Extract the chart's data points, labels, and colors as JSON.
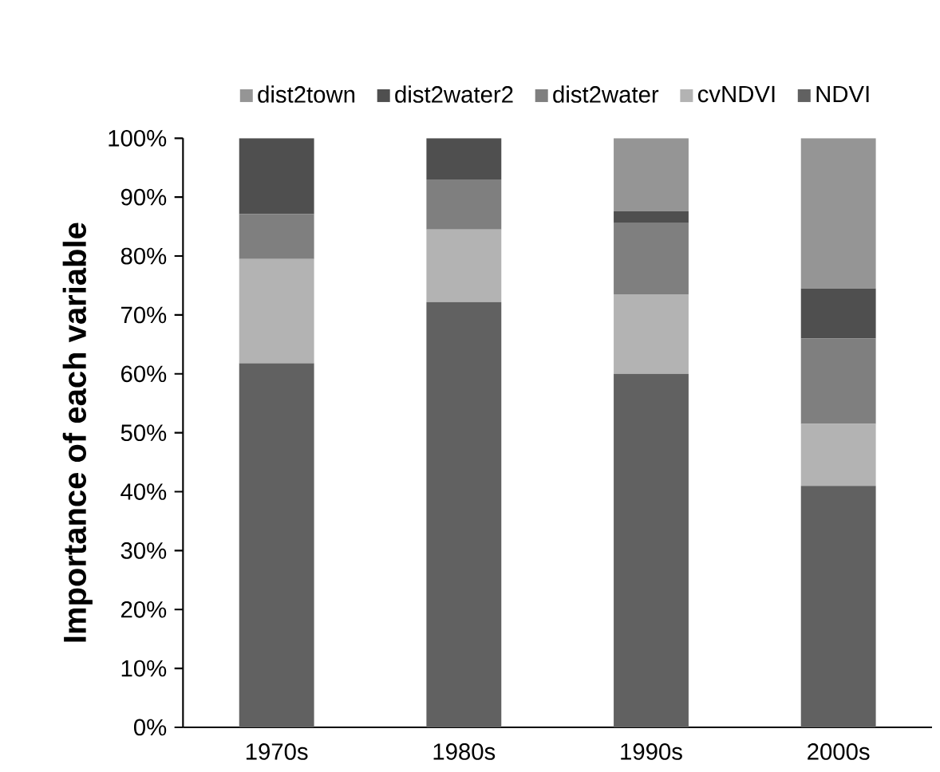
{
  "chart_data": {
    "type": "bar",
    "stacked": true,
    "ylabel": "Importance of each variable",
    "categories": [
      "1970s",
      "1980s",
      "1990s",
      "2000s"
    ],
    "series": [
      {
        "name": "NDVI",
        "color": "#616161",
        "values": [
          61.8,
          72.2,
          60.0,
          41.0
        ]
      },
      {
        "name": "cvNDVI",
        "color": "#b3b3b3",
        "values": [
          17.7,
          12.3,
          13.5,
          10.5
        ]
      },
      {
        "name": "dist2water",
        "color": "#7f7f7f",
        "values": [
          7.6,
          8.5,
          12.1,
          14.5
        ]
      },
      {
        "name": "dist2water2",
        "color": "#4f4f4f",
        "values": [
          12.9,
          7.0,
          2.0,
          8.5
        ]
      },
      {
        "name": "dist2town",
        "color": "#959595",
        "values": [
          0,
          0,
          12.4,
          25.5
        ]
      }
    ],
    "ylim": [
      0,
      100
    ],
    "yticks": [
      {
        "value": 0,
        "label": "0%"
      },
      {
        "value": 10,
        "label": "10%"
      },
      {
        "value": 20,
        "label": "20%"
      },
      {
        "value": 30,
        "label": "30%"
      },
      {
        "value": 40,
        "label": "40%"
      },
      {
        "value": 50,
        "label": "50%"
      },
      {
        "value": 60,
        "label": "60%"
      },
      {
        "value": 70,
        "label": "70%"
      },
      {
        "value": 80,
        "label": "80%"
      },
      {
        "value": 90,
        "label": "90%"
      },
      {
        "value": 100,
        "label": "100%"
      }
    ],
    "grid": false,
    "legend": "top"
  }
}
